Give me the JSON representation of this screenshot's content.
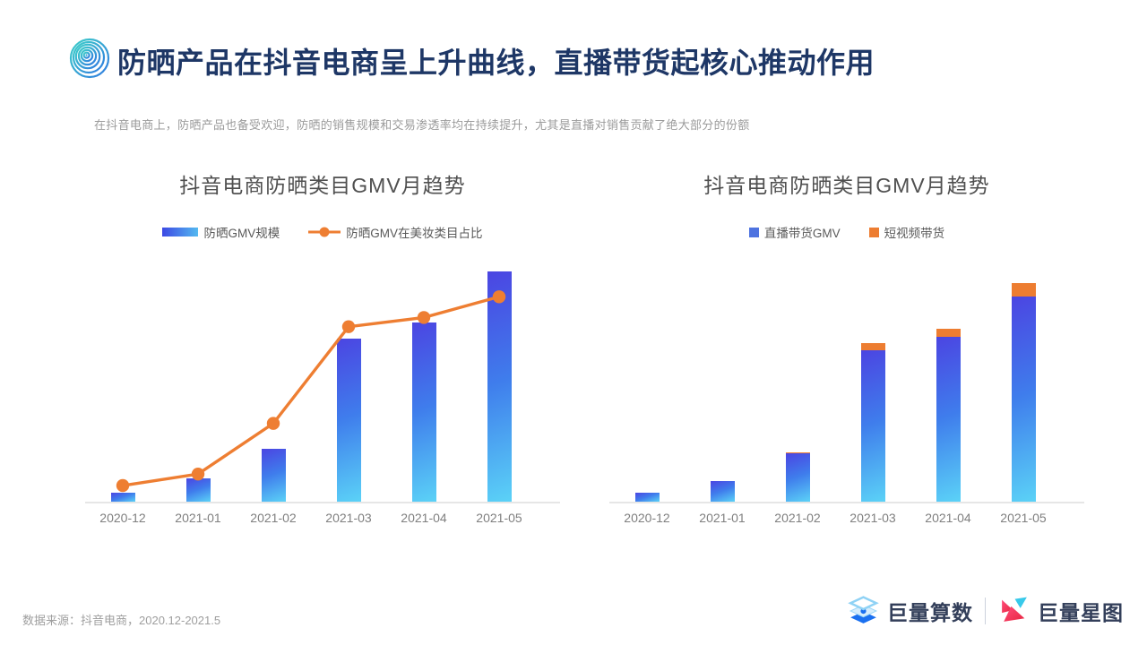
{
  "page": {
    "title": "防晒产品在抖音电商呈上升曲线，直播带货起核心推动作用",
    "subtitle": "在抖音电商上，防晒产品也备受欢迎，防晒的销售规模和交易渗透率均在持续提升，尤其是直播对销售贡献了绝大部分的份额",
    "footer": {
      "source": "数据来源：抖音电商，2020.12-2021.5"
    }
  },
  "brand": {
    "logo_left": "巨量算数",
    "logo_right": "巨量星图"
  },
  "colors": {
    "title": "#1e3766",
    "bar_gradient_top": "#4b45e2",
    "bar_gradient_bottom": "#5bd2f7",
    "line_orange": "#ee7e32",
    "cap_orange": "#ed7d31",
    "legend_blue_square": "#4e73e0",
    "axis_gray": "#e6e6e6"
  },
  "chart_data": [
    {
      "type": "bar",
      "title": "抖音电商防晒类目GMV月趋势",
      "categories": [
        "2020-12",
        "2021-01",
        "2021-02",
        "2021-03",
        "2021-04",
        "2021-05"
      ],
      "series": [
        {
          "name": "防晒GMV规模",
          "render": "bar",
          "swatch": "gradient",
          "values": [
            4,
            10,
            23,
            71,
            78,
            100
          ]
        },
        {
          "name": "防晒GMV在美妆类目占比",
          "render": "line",
          "swatch": "line",
          "color": "#ee7e32",
          "values": [
            7,
            12,
            34,
            76,
            80,
            89
          ]
        }
      ],
      "ylim": [
        0,
        100
      ],
      "value_scale": "relative index, tallest bar = 100 (no numeric axis shown)",
      "grid": false,
      "legend_position": "top"
    },
    {
      "type": "bar",
      "stacked": true,
      "title": "抖音电商防晒类目GMV月趋势",
      "categories": [
        "2020-12",
        "2021-01",
        "2021-02",
        "2021-03",
        "2021-04",
        "2021-05"
      ],
      "series": [
        {
          "name": "直播带货GMV",
          "render": "bar",
          "swatch": "square",
          "color": "#4e73e0",
          "values": [
            4,
            9.5,
            22,
            69,
            75,
            93.5
          ]
        },
        {
          "name": "短视频带货",
          "render": "bar-cap",
          "swatch": "square",
          "color": "#ed7d31",
          "values": [
            0,
            0,
            0.5,
            3.4,
            3.6,
            6.2
          ]
        }
      ],
      "ylim": [
        0,
        100
      ],
      "value_scale": "relative index, tallest stacked bar ≈ 100 (no numeric axis shown)",
      "grid": false,
      "legend_position": "top"
    }
  ]
}
